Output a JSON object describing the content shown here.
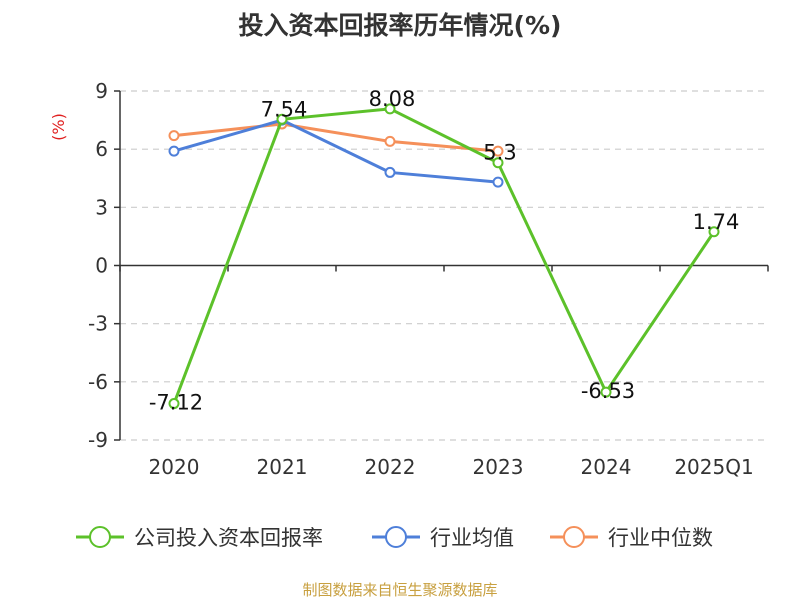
{
  "chart_data": {
    "type": "line",
    "title": "投入资本回报率历年情况(%)",
    "ylabel": "(%)",
    "categories": [
      "2020",
      "2021",
      "2022",
      "2023",
      "2024",
      "2025Q1"
    ],
    "ylim": [
      -9,
      9
    ],
    "yticks": [
      9,
      6,
      3,
      0,
      -3,
      -6,
      -9
    ],
    "ytick_labels": [
      "9",
      "6",
      "3",
      "0",
      "-3",
      "-6",
      "-9"
    ],
    "grid": true,
    "legend_position": "bottom",
    "series": [
      {
        "name": "公司投入资本回报率",
        "color": "#5cc12a",
        "values": [
          -7.12,
          7.54,
          8.08,
          5.3,
          -6.53,
          1.74
        ],
        "labels": [
          "-7.12",
          "7.54",
          "8.08",
          "5.3",
          "-6.53",
          "1.74"
        ]
      },
      {
        "name": "行业均值",
        "color": "#4e7fd9",
        "values": [
          5.9,
          7.5,
          4.8,
          4.3,
          null,
          null
        ]
      },
      {
        "name": "行业中位数",
        "color": "#f5905a",
        "values": [
          6.7,
          7.3,
          6.4,
          5.9,
          null,
          null
        ]
      }
    ]
  },
  "source": "制图数据来自恒生聚源数据库"
}
